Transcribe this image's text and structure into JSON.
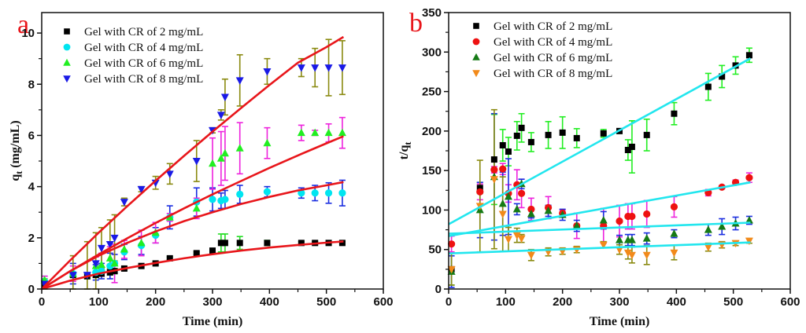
{
  "chart_data": [
    {
      "type": "scatter",
      "panel_label": "a",
      "title": "",
      "xlabel": "Time (min)",
      "ylabel": "q",
      "ylabel_sub": "t",
      "ylabel_unit": " (mg/mL)",
      "xlim": [
        0,
        600
      ],
      "ylim": [
        0,
        10.8
      ],
      "xticks": [
        0,
        100,
        200,
        300,
        400,
        500,
        600
      ],
      "yticks": [
        0,
        2,
        4,
        6,
        8,
        10
      ],
      "grid": false,
      "legend_position": "top-left",
      "fit_color": "#e8161b",
      "series": [
        {
          "name": "Gel with CR of 2 mg/mL",
          "marker": "square",
          "color": "#000000",
          "error_color": "#22dd22",
          "x": [
            5,
            55,
            80,
            95,
            105,
            120,
            128,
            145,
            175,
            200,
            225,
            272,
            300,
            315,
            322,
            348,
            396,
            456,
            480,
            504,
            528
          ],
          "y": [
            0.2,
            0.55,
            0.5,
            0.55,
            0.6,
            0.65,
            0.7,
            0.8,
            0.9,
            1.0,
            1.2,
            1.4,
            1.5,
            1.8,
            1.8,
            1.8,
            1.8,
            1.8,
            1.8,
            1.8,
            1.8
          ],
          "err": [
            0.1,
            0.1,
            0.1,
            0.1,
            0.1,
            0.1,
            0.1,
            0.05,
            0.05,
            0.05,
            0.05,
            0.05,
            0.05,
            0.35,
            0.35,
            0.25,
            0.1,
            0.05,
            0.05,
            0.05,
            0.05
          ],
          "fit": {
            "x": [
              0,
              50,
              100,
              150,
              200,
              250,
              300,
              350,
              400,
              450,
              500,
              530
            ],
            "y": [
              0,
              0.33,
              0.6,
              0.82,
              1.02,
              1.2,
              1.36,
              1.5,
              1.62,
              1.72,
              1.81,
              1.86
            ]
          }
        },
        {
          "name": "Gel with CR of 4 mg/mL",
          "marker": "circle",
          "color": "#00e5f0",
          "error_color": "#1a2ee0",
          "x": [
            5,
            55,
            95,
            105,
            120,
            128,
            145,
            175,
            200,
            225,
            272,
            300,
            315,
            322,
            348,
            396,
            456,
            480,
            504,
            528
          ],
          "y": [
            0.3,
            0.6,
            0.65,
            0.7,
            0.9,
            1.0,
            1.45,
            1.7,
            2.1,
            2.8,
            3.4,
            3.5,
            3.45,
            3.5,
            3.7,
            3.8,
            3.75,
            3.75,
            3.75,
            3.75
          ],
          "err": [
            0.2,
            0.4,
            0.3,
            0.3,
            0.5,
            0.35,
            0.3,
            0.35,
            0.3,
            0.45,
            0.55,
            0.45,
            0.3,
            0.35,
            0.35,
            0.2,
            0.2,
            0.3,
            0.4,
            0.5
          ],
          "fit": {
            "x": [
              0,
              50,
              100,
              150,
              200,
              250,
              300,
              350,
              400,
              450,
              500,
              530
            ],
            "y": [
              0,
              0.7,
              1.3,
              1.8,
              2.25,
              2.65,
              3.0,
              3.32,
              3.6,
              3.85,
              4.05,
              4.18
            ]
          }
        },
        {
          "name": "Gel with CR of 6 mg/mL",
          "marker": "triangle-up",
          "color": "#22ee22",
          "error_color": "#ee22dd",
          "x": [
            5,
            55,
            95,
            105,
            120,
            128,
            145,
            175,
            200,
            225,
            272,
            300,
            315,
            322,
            348,
            396,
            456,
            480,
            504,
            528
          ],
          "y": [
            0.35,
            0.6,
            0.9,
            0.95,
            1.2,
            1.0,
            1.55,
            1.8,
            2.2,
            2.8,
            3.15,
            4.9,
            5.1,
            5.3,
            5.5,
            5.7,
            6.1,
            6.1,
            6.1,
            6.1
          ],
          "err": [
            0.15,
            0.3,
            0.35,
            0.45,
            0.45,
            0.75,
            0.35,
            0.5,
            0.4,
            0.15,
            0.4,
            1.0,
            1.05,
            1.05,
            1.0,
            0.6,
            0.3,
            0.1,
            0.35,
            0.6
          ],
          "fit": {
            "x": [
              0,
              50,
              100,
              150,
              200,
              250,
              300,
              350,
              400,
              450,
              500,
              530
            ],
            "y": [
              0,
              0.7,
              1.35,
              1.98,
              2.58,
              3.15,
              3.7,
              4.22,
              4.73,
              5.22,
              5.69,
              5.97
            ]
          }
        },
        {
          "name": "Gel with CR of 8 mg/mL",
          "marker": "triangle-down",
          "color": "#1a1ae6",
          "error_color": "#8a8a10",
          "x": [
            5,
            55,
            80,
            95,
            105,
            120,
            128,
            145,
            175,
            200,
            225,
            272,
            300,
            315,
            322,
            348,
            396,
            456,
            480,
            504,
            528
          ],
          "y": [
            0.2,
            0.55,
            0.55,
            1.0,
            1.6,
            1.75,
            2.0,
            3.4,
            3.9,
            4.15,
            4.5,
            5.0,
            6.2,
            6.8,
            7.5,
            8.15,
            8.5,
            8.65,
            8.65,
            8.65,
            8.65
          ],
          "err": [
            0.2,
            0.75,
            1.3,
            1.2,
            0.8,
            0.95,
            0.9,
            0.15,
            0.1,
            0.25,
            0.4,
            0.8,
            0.1,
            0.2,
            0.7,
            1.0,
            0.5,
            0.35,
            0.75,
            1.1,
            1.05
          ],
          "fit": {
            "x": [
              0,
              50,
              100,
              150,
              200,
              250,
              300,
              350,
              400,
              450,
              500,
              530
            ],
            "y": [
              0,
              1.12,
              2.2,
              3.23,
              4.23,
              5.2,
              6.15,
              7.07,
              7.97,
              8.84,
              9.45,
              9.85
            ]
          }
        }
      ]
    },
    {
      "type": "scatter",
      "panel_label": "b",
      "title": "",
      "xlabel": "Time (min)",
      "ylabel": "t/q",
      "ylabel_sub": "t",
      "ylabel_unit": "",
      "xlim": [
        0,
        600
      ],
      "ylim": [
        0,
        350
      ],
      "xticks": [
        0,
        100,
        200,
        300,
        400,
        500,
        600
      ],
      "yticks": [
        0,
        50,
        100,
        150,
        200,
        250,
        300,
        350
      ],
      "grid": false,
      "legend_position": "top-left",
      "fit_color": "#22e6ee",
      "series": [
        {
          "name": "Gel with CR of 2 mg/mL",
          "marker": "square",
          "color": "#000000",
          "error_color": "#22ee22",
          "x": [
            5,
            55,
            80,
            95,
            105,
            120,
            128,
            145,
            175,
            200,
            225,
            272,
            300,
            315,
            322,
            348,
            396,
            456,
            480,
            504,
            528
          ],
          "y": [
            25,
            128,
            164,
            182,
            174,
            194,
            204,
            186,
            195,
            198,
            191,
            197,
            200,
            176,
            180,
            195,
            222,
            256,
            269,
            283,
            296
          ],
          "err": [
            20,
            7,
            57,
            20,
            18,
            18,
            18,
            12,
            17,
            20,
            12,
            5,
            3,
            13,
            33,
            20,
            14,
            17,
            14,
            11,
            9
          ],
          "fit": {
            "x": [
              0,
              530
            ],
            "y": [
              82,
              292
            ]
          }
        },
        {
          "name": "Gel with CR of 4 mg/mL",
          "marker": "circle",
          "color": "#ee1111",
          "error_color": "#ee22dd",
          "x": [
            5,
            55,
            80,
            95,
            105,
            120,
            128,
            145,
            175,
            200,
            225,
            272,
            300,
            315,
            322,
            348,
            396,
            456,
            480,
            504,
            528
          ],
          "y": [
            57,
            123,
            151,
            152,
            121,
            132,
            121,
            101,
            103,
            96,
            80,
            80,
            86,
            92,
            92,
            95,
            104,
            122,
            129,
            135,
            141
          ],
          "err": [
            10,
            10,
            4,
            7,
            11,
            19,
            18,
            14,
            14,
            4,
            16,
            22,
            20,
            16,
            16,
            17,
            13,
            4,
            2,
            3,
            6
          ],
          "fit": {
            "x": [
              0,
              530
            ],
            "y": [
              67,
              135
            ]
          }
        },
        {
          "name": "Gel with CR of 6 mg/mL",
          "marker": "triangle-up",
          "color": "#157a15",
          "error_color": "#1a2ee0",
          "x": [
            5,
            55,
            80,
            95,
            105,
            120,
            128,
            145,
            175,
            200,
            225,
            272,
            300,
            315,
            322,
            348,
            396,
            456,
            480,
            504,
            528
          ],
          "y": [
            22,
            100,
            142,
            108,
            117,
            101,
            133,
            95,
            99,
            94,
            80,
            87,
            62,
            62,
            62,
            64,
            70,
            75,
            79,
            83,
            87
          ],
          "err": [
            20,
            35,
            80,
            40,
            48,
            7,
            6,
            5,
            7,
            7,
            7,
            11,
            6,
            7,
            7,
            7,
            5,
            7,
            10,
            8,
            5
          ],
          "fit": {
            "x": [
              0,
              530
            ],
            "y": [
              70,
              84
            ]
          }
        },
        {
          "name": "Gel with CR of 8 mg/mL",
          "marker": "triangle-down",
          "color": "#f28a1a",
          "error_color": "#8a8a10",
          "x": [
            5,
            55,
            80,
            95,
            105,
            120,
            128,
            145,
            175,
            200,
            225,
            272,
            300,
            315,
            322,
            348,
            396,
            456,
            480,
            504,
            528
          ],
          "y": [
            25,
            105,
            139,
            95,
            63,
            68,
            64,
            43,
            47,
            48,
            50,
            56,
            50,
            46,
            43,
            43,
            46,
            53,
            56,
            58,
            61
          ],
          "err": [
            20,
            58,
            88,
            47,
            15,
            9,
            5,
            7,
            5,
            4,
            4,
            4,
            6,
            8,
            10,
            12,
            9,
            5,
            4,
            3,
            3
          ],
          "fit": {
            "x": [
              0,
              530
            ],
            "y": [
              45,
              59
            ]
          }
        }
      ]
    }
  ]
}
